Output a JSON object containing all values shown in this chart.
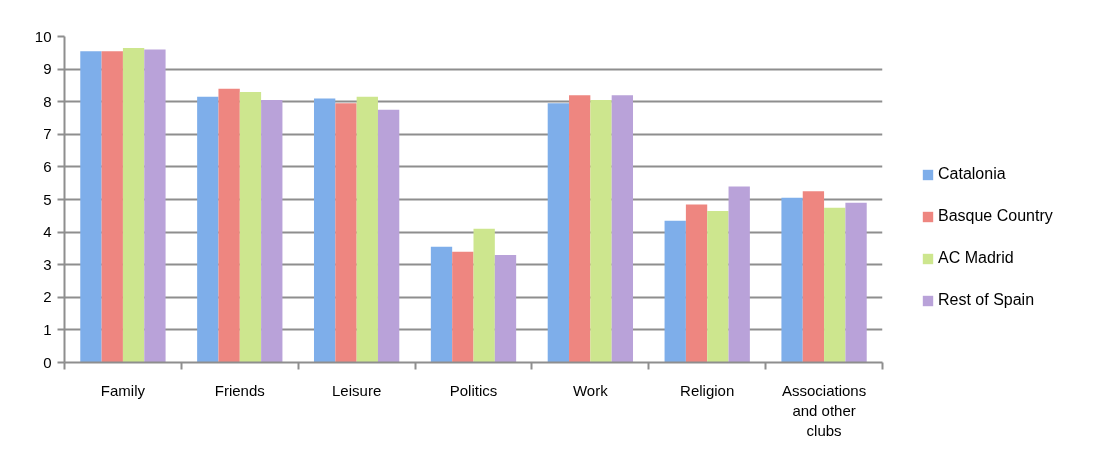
{
  "chart_data": {
    "type": "bar",
    "categories": [
      "Family",
      "Friends",
      "Leisure",
      "Politics",
      "Work",
      "Religion",
      "Associations and other clubs"
    ],
    "series": [
      {
        "name": "Catalonia",
        "color": "#7eaeea",
        "values": [
          9.55,
          8.15,
          8.1,
          3.55,
          7.95,
          4.35,
          5.05
        ]
      },
      {
        "name": "Basque Country",
        "color": "#ee8680",
        "values": [
          9.55,
          8.4,
          7.95,
          3.4,
          8.2,
          4.85,
          5.25
        ]
      },
      {
        "name": "AC Madrid",
        "color": "#cde68e",
        "values": [
          9.65,
          8.3,
          8.15,
          4.1,
          8.05,
          4.65,
          4.75
        ]
      },
      {
        "name": "Rest of Spain",
        "color": "#b9a2d9",
        "values": [
          9.6,
          8.05,
          7.75,
          3.3,
          8.2,
          5.4,
          4.9
        ]
      }
    ],
    "ylim": [
      0,
      10
    ],
    "yticks": [
      0,
      1,
      2,
      3,
      4,
      5,
      6,
      7,
      8,
      9,
      10
    ],
    "grid": "y",
    "legend": "right"
  }
}
